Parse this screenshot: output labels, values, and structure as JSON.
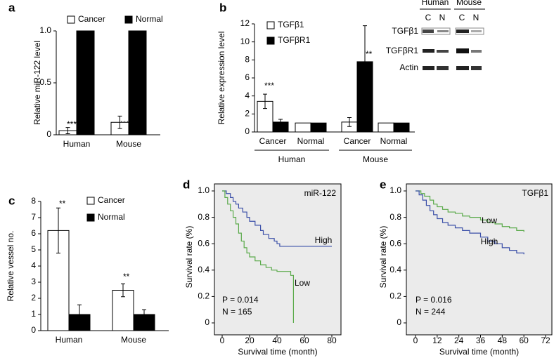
{
  "chart_data": [
    {
      "type": "bar",
      "panel": "a",
      "ylabel": "Relative miR-122 level",
      "categories": [
        "Human",
        "Mouse"
      ],
      "series": [
        {
          "name": "Cancer",
          "color": "#ffffff",
          "values": [
            0.04,
            0.12
          ],
          "errors": [
            0.03,
            0.06
          ]
        },
        {
          "name": "Normal",
          "color": "#000000",
          "values": [
            1,
            1
          ],
          "errors": [
            0,
            0
          ]
        }
      ],
      "ylim": [
        0,
        1
      ],
      "yticks": [
        0,
        0.5,
        {
          "value": 1,
          "label": "1.0"
        }
      ],
      "annotations": [
        "***",
        "***"
      ]
    },
    {
      "type": "bar",
      "panel": "b",
      "ylabel": "Relative expression level",
      "categories": [
        "Cancer",
        "Normal",
        "Cancer",
        "Normal"
      ],
      "group_labels": [
        "Human",
        "Mouse"
      ],
      "series": [
        {
          "name": "TGFβ1",
          "color": "#ffffff",
          "values": [
            3.4,
            1,
            1.1,
            1
          ],
          "errors": [
            0.8,
            0,
            0.5,
            0
          ]
        },
        {
          "name": "TGFβR1",
          "color": "#000000",
          "values": [
            1.1,
            1,
            7.8,
            1
          ],
          "errors": [
            0.3,
            0,
            4,
            0
          ]
        }
      ],
      "ylim": [
        0,
        12
      ],
      "yticks": [
        0,
        2,
        4,
        6,
        8,
        10,
        12
      ],
      "annotations": [
        "***",
        "**"
      ],
      "blot": {
        "groups": [
          "Human",
          "Mouse"
        ],
        "lanes": [
          "C",
          "N",
          "C",
          "N"
        ],
        "rows": [
          "TGFβ1",
          "TGFβR1",
          "Actin"
        ]
      }
    },
    {
      "type": "bar",
      "panel": "c",
      "ylabel": "Relative vessel no.",
      "categories": [
        "Human",
        "Mouse"
      ],
      "series": [
        {
          "name": "Cancer",
          "color": "#ffffff",
          "values": [
            6.2,
            2.5
          ],
          "errors": [
            1.4,
            0.4
          ]
        },
        {
          "name": "Normal",
          "color": "#000000",
          "values": [
            1,
            1
          ],
          "errors": [
            0.6,
            0.3
          ]
        }
      ],
      "ylim": [
        0,
        8
      ],
      "yticks": [
        0,
        1,
        2,
        3,
        4,
        5,
        6,
        7,
        8
      ],
      "annotations": [
        "**",
        "**"
      ]
    },
    {
      "type": "line",
      "panel": "d",
      "xlabel": "Survival time (month)",
      "ylabel": "Survival rate (%)",
      "annotations": [
        "miR-122",
        "P = 0.014",
        "N = 165"
      ],
      "series": [
        {
          "name": "High",
          "color": "#3b4fa8",
          "x": [
            0,
            3,
            6,
            8,
            10,
            12,
            15,
            18,
            20,
            24,
            28,
            30,
            34,
            38,
            40,
            42,
            80
          ],
          "values": [
            1,
            0.98,
            0.95,
            0.92,
            0.9,
            0.87,
            0.84,
            0.8,
            0.77,
            0.74,
            0.7,
            0.67,
            0.64,
            0.62,
            0.6,
            0.58,
            0.58
          ]
        },
        {
          "name": "Low",
          "color": "#5aaa4a",
          "x": [
            0,
            2,
            4,
            6,
            8,
            10,
            12,
            14,
            16,
            18,
            20,
            24,
            28,
            32,
            36,
            40,
            48,
            50,
            52,
            52
          ],
          "values": [
            1,
            0.95,
            0.9,
            0.85,
            0.8,
            0.75,
            0.68,
            0.62,
            0.57,
            0.53,
            0.5,
            0.47,
            0.44,
            0.42,
            0.4,
            0.39,
            0.39,
            0.36,
            0.3,
            0
          ]
        }
      ],
      "xlim": [
        0,
        80
      ],
      "xticks": [
        0,
        20,
        40,
        60,
        80
      ],
      "ylim": [
        0,
        1
      ],
      "yticks": [
        0,
        0.2,
        0.4,
        0.6,
        0.8,
        {
          "value": 1,
          "label": "1.0"
        }
      ]
    },
    {
      "type": "line",
      "panel": "e",
      "xlabel": "Survival time (month)",
      "ylabel": "Survival rate (%)",
      "annotations": [
        "TGFβ1",
        "P = 0.016",
        "N = 244"
      ],
      "series": [
        {
          "name": "Low",
          "color": "#5aaa4a",
          "x": [
            0,
            3,
            5,
            8,
            10,
            12,
            15,
            18,
            22,
            26,
            30,
            36,
            40,
            44,
            48,
            52,
            56,
            60
          ],
          "values": [
            1,
            0.98,
            0.96,
            0.93,
            0.9,
            0.88,
            0.86,
            0.84,
            0.83,
            0.81,
            0.8,
            0.78,
            0.76,
            0.75,
            0.73,
            0.72,
            0.7,
            0.69
          ]
        },
        {
          "name": "High",
          "color": "#3b4fa8",
          "x": [
            0,
            2,
            4,
            6,
            8,
            10,
            12,
            15,
            18,
            22,
            26,
            30,
            36,
            40,
            44,
            48,
            52,
            56,
            60
          ],
          "values": [
            1,
            0.97,
            0.93,
            0.89,
            0.85,
            0.82,
            0.79,
            0.76,
            0.74,
            0.72,
            0.7,
            0.68,
            0.65,
            0.62,
            0.6,
            0.57,
            0.55,
            0.53,
            0.52
          ]
        }
      ],
      "xlim": [
        0,
        72
      ],
      "xticks": [
        0,
        12,
        24,
        36,
        48,
        60,
        72
      ],
      "ylim": [
        0,
        1
      ],
      "yticks": [
        0,
        0.2,
        0.4,
        0.6,
        0.8,
        {
          "value": 1,
          "label": "1.0"
        }
      ]
    }
  ]
}
